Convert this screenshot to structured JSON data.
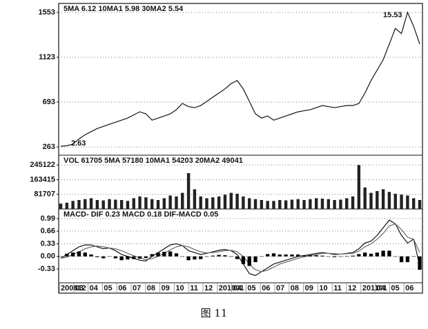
{
  "chart_data": [
    {
      "type": "line",
      "legend": "5MA 6.12  10MA1 5.98  30MA2 5.54",
      "annotations": [
        "15.53",
        "2.63"
      ],
      "series": [
        {
          "color": "#111111",
          "values": [
            270,
            275,
            290,
            340,
            380,
            410,
            440,
            460,
            480,
            500,
            520,
            540,
            570,
            600,
            580,
            520,
            540,
            560,
            580,
            620,
            680,
            650,
            640,
            660,
            700,
            740,
            780,
            820,
            870,
            900,
            820,
            700,
            580,
            540,
            560,
            520,
            540,
            560,
            580,
            600,
            610,
            620,
            640,
            660,
            650,
            640,
            650,
            660,
            660,
            680,
            780,
            900,
            1000,
            1100,
            1250,
            1400,
            1350,
            1553,
            1420,
            1250
          ]
        }
      ],
      "ylim": [
        184,
        1639
      ],
      "yticks": [
        263,
        693,
        1123,
        1553
      ],
      "grid": true
    },
    {
      "type": "bar",
      "legend": "VOL 61705  5MA 57180  10MA1 54203  20MA2 49041",
      "series": [
        {
          "color": "#222222",
          "values": [
            30000,
            35000,
            45000,
            50000,
            55000,
            60000,
            50000,
            48000,
            55000,
            52000,
            50000,
            45000,
            60000,
            70000,
            65000,
            55000,
            50000,
            60000,
            75000,
            70000,
            90000,
            200000,
            110000,
            70000,
            60000,
            65000,
            70000,
            80000,
            90000,
            85000,
            70000,
            60000,
            55000,
            50000,
            45000,
            45000,
            50000,
            48000,
            52000,
            55000,
            50000,
            55000,
            60000,
            58000,
            55000,
            50000,
            52000,
            60000,
            70000,
            245000,
            120000,
            90000,
            100000,
            110000,
            95000,
            85000,
            80000,
            75000,
            60000,
            50000
          ]
        }
      ],
      "ylim": [
        0,
        300000
      ],
      "yticks": [
        81707,
        163415,
        245122
      ],
      "grid": true
    },
    {
      "type": "macd",
      "legend": "MACD- DIF 0.23  MACD 0.18  DIF-MACD 0.05",
      "series": [
        {
          "name": "DIF",
          "color": "#111111",
          "values": [
            -0.05,
            0.05,
            0.15,
            0.25,
            0.3,
            0.3,
            0.25,
            0.2,
            0.22,
            0.15,
            0.05,
            0.0,
            -0.05,
            -0.1,
            -0.12,
            0.0,
            0.1,
            0.2,
            0.3,
            0.33,
            0.28,
            0.15,
            0.1,
            0.05,
            0.08,
            0.12,
            0.16,
            0.18,
            0.15,
            0.05,
            -0.2,
            -0.45,
            -0.5,
            -0.4,
            -0.3,
            -0.2,
            -0.15,
            -0.1,
            -0.05,
            0.0,
            0.02,
            0.05,
            0.08,
            0.1,
            0.08,
            0.05,
            0.06,
            0.08,
            0.1,
            0.2,
            0.35,
            0.4,
            0.55,
            0.75,
            0.95,
            0.85,
            0.55,
            0.35,
            0.45,
            -0.25
          ]
        },
        {
          "name": "MACD",
          "color": "#666666",
          "values": [
            -0.05,
            -0.02,
            0.05,
            0.12,
            0.2,
            0.25,
            0.27,
            0.25,
            0.22,
            0.2,
            0.15,
            0.08,
            0.02,
            -0.04,
            -0.08,
            -0.06,
            0.0,
            0.08,
            0.17,
            0.25,
            0.28,
            0.25,
            0.18,
            0.12,
            0.09,
            0.1,
            0.12,
            0.15,
            0.16,
            0.12,
            0.0,
            -0.2,
            -0.35,
            -0.4,
            -0.36,
            -0.28,
            -0.2,
            -0.15,
            -0.1,
            -0.05,
            -0.01,
            0.02,
            0.05,
            0.08,
            0.08,
            0.07,
            0.06,
            0.07,
            0.08,
            0.14,
            0.25,
            0.33,
            0.45,
            0.6,
            0.8,
            0.85,
            0.7,
            0.5,
            0.45,
            0.1
          ]
        },
        {
          "name": "DIF-MACD",
          "color": "#000000",
          "values": [
            0,
            0.07,
            0.1,
            0.13,
            0.1,
            0.05,
            -0.02,
            -0.05,
            0,
            -0.05,
            -0.1,
            -0.08,
            -0.07,
            -0.06,
            -0.04,
            0.06,
            0.1,
            0.12,
            0.13,
            0.08,
            0,
            -0.1,
            -0.08,
            -0.07,
            -0.01,
            0.02,
            0.04,
            0.03,
            -0.01,
            -0.07,
            -0.2,
            -0.25,
            -0.15,
            0,
            0.06,
            0.08,
            0.05,
            0.05,
            0.05,
            0.05,
            0.03,
            0.03,
            0.03,
            0.02,
            0,
            -0.02,
            0,
            0.01,
            0.02,
            0.06,
            0.1,
            0.07,
            0.1,
            0.15,
            0.15,
            0,
            -0.15,
            -0.15,
            0,
            -0.35
          ]
        }
      ],
      "ylim": [
        -0.69,
        1.24
      ],
      "yticks": [
        -0.33,
        {
          "value": 0,
          "label": "0.00"
        },
        0.33,
        0.66,
        0.99
      ],
      "grid": true,
      "x_labels": [
        "200812",
        "03",
        "04",
        "05",
        "06",
        "07",
        "08",
        "09",
        "10",
        "11",
        "12",
        "201001",
        "04",
        "05",
        "06",
        "07",
        "08",
        "09",
        "10",
        "11",
        "12",
        "201101",
        "04",
        "05",
        "06"
      ]
    }
  ],
  "caption": "图 11"
}
